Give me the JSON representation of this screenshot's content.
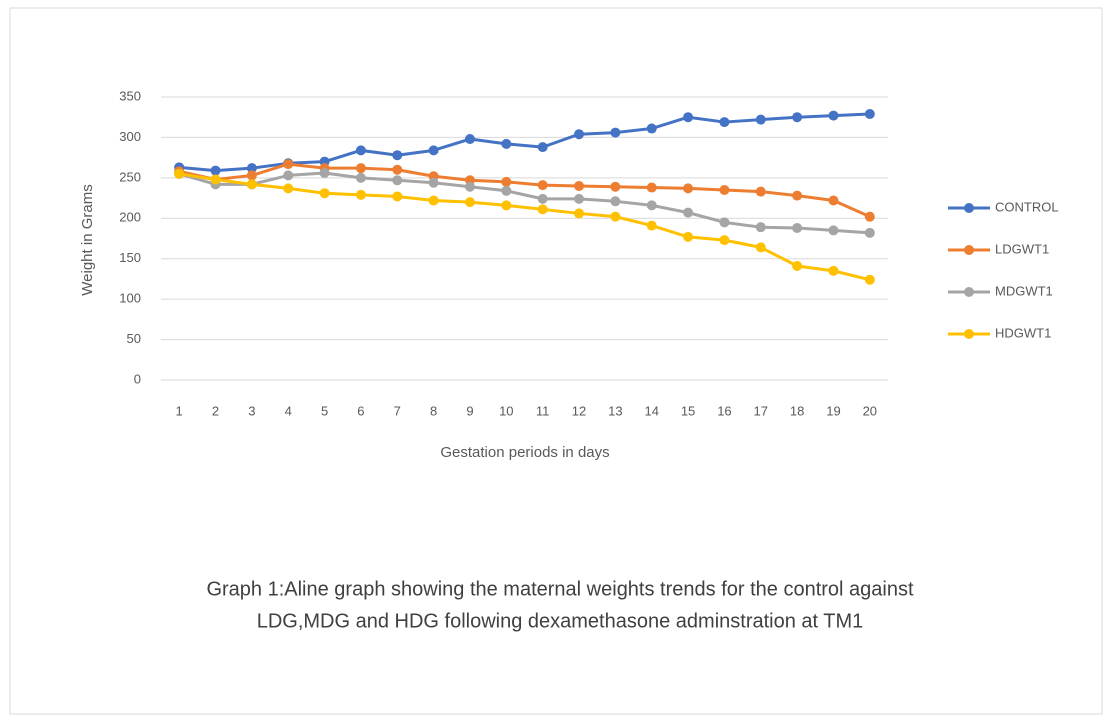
{
  "chart_data": {
    "type": "line",
    "y_label": "Weight in  Grams",
    "x_label": "Gestation periods in days",
    "caption": [
      "Graph 1:Aline graph showing the maternal weights trends for the control against",
      "LDG,MDG and HDG following dexamethasone adminstration at TM1"
    ],
    "categories": [
      "1",
      "2",
      "3",
      "4",
      "5",
      "6",
      "7",
      "8",
      "9",
      "10",
      "11",
      "12",
      "13",
      "14",
      "15",
      "16",
      "17",
      "18",
      "19",
      "20"
    ],
    "series": [
      {
        "name": "CONTROL",
        "color": "#4472c4",
        "values": [
          263,
          259,
          262,
          268,
          270,
          284,
          278,
          284,
          298,
          292,
          288,
          304,
          306,
          311,
          325,
          319,
          322,
          325,
          327,
          329
        ]
      },
      {
        "name": "LDGWT1",
        "color": "#ed7d31",
        "values": [
          258,
          248,
          253,
          267,
          262,
          262,
          260,
          252,
          247,
          245,
          241,
          240,
          239,
          238,
          237,
          235,
          233,
          228,
          222,
          202
        ]
      },
      {
        "name": "MDGWT1",
        "color": "#a5a5a5",
        "values": [
          255,
          242,
          242,
          253,
          256,
          250,
          247,
          244,
          239,
          234,
          224,
          224,
          221,
          216,
          207,
          195,
          189,
          188,
          185,
          182
        ]
      },
      {
        "name": "HDGWT1",
        "color": "#ffc000",
        "values": [
          255,
          248,
          242,
          237,
          231,
          229,
          227,
          222,
          220,
          216,
          211,
          206,
          202,
          191,
          177,
          173,
          164,
          141,
          135,
          124
        ]
      }
    ],
    "ylim": [
      0,
      350
    ],
    "yticks": [
      0,
      50,
      100,
      150,
      200,
      250,
      300,
      350
    ],
    "grid": true,
    "legend": "right"
  }
}
